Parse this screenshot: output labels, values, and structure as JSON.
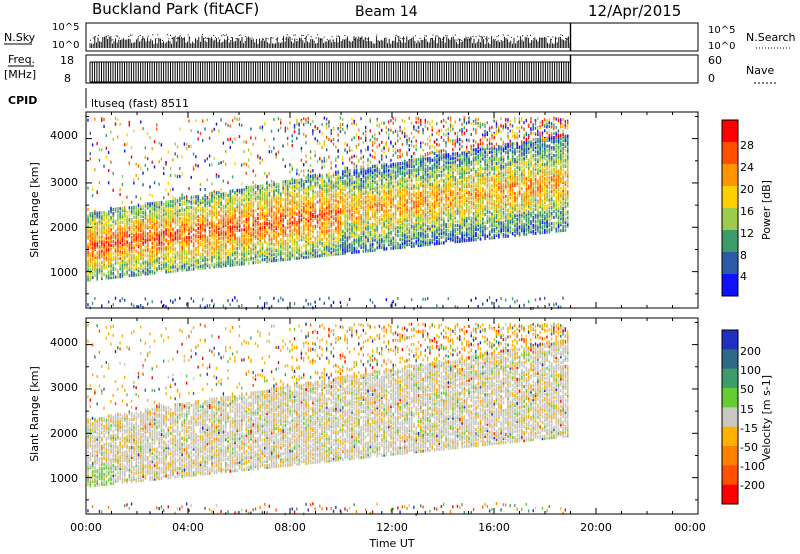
{
  "header": {
    "title": "Buckland Park (fitACF)",
    "beam": "Beam 14",
    "date": "12/Apr/2015"
  },
  "sky_panel": {
    "left_label": "N.Sky",
    "right_label": "N.Search",
    "ticks_left": [
      "10^5",
      "10^0"
    ],
    "ticks_right": [
      "10^5",
      "10^0"
    ]
  },
  "freq_panel": {
    "left_label_1": "Freq.",
    "left_label_2": "[MHz]",
    "right_label": "Nave",
    "ticks_left": [
      "18",
      "8"
    ],
    "ticks_right": [
      "60",
      "0"
    ]
  },
  "cpid": {
    "label": "CPID",
    "value": "ltuseq (fast) 8511"
  },
  "chart_data": [
    {
      "type": "heatmap",
      "panel": "power",
      "ylabel": "Slant Range [km]",
      "xlabel": "",
      "ylim": [
        180,
        4600
      ],
      "xlim": [
        "00:00",
        "24:00"
      ],
      "data_end": "19:00",
      "y_ticks": [
        "4000",
        "3000",
        "2000",
        "1000"
      ],
      "colorbar": {
        "label": "Power [dB]",
        "ticks": [
          "28",
          "24",
          "20",
          "16",
          "12",
          "8",
          "4"
        ],
        "colors": [
          "#ff0000",
          "#ff5000",
          "#ff9400",
          "#ffd000",
          "#9ecb4b",
          "#3b9e6a",
          "#2a5aa8",
          "#1010ff"
        ]
      }
    },
    {
      "type": "heatmap",
      "panel": "velocity",
      "ylabel": "Slant Range [km]",
      "xlabel": "Time UT",
      "ylim": [
        180,
        4600
      ],
      "xlim": [
        "00:00",
        "24:00"
      ],
      "data_end": "19:00",
      "y_ticks": [
        "4000",
        "3000",
        "2000",
        "1000"
      ],
      "x_ticks": [
        "00:00",
        "04:00",
        "08:00",
        "12:00",
        "16:00",
        "20:00",
        "00:00"
      ],
      "colorbar": {
        "label": "Velocity [m s-1]",
        "ticks": [
          "200",
          "100",
          "50",
          "15",
          "-15",
          "-50",
          "-100",
          "-200"
        ],
        "colors": [
          "#2030c0",
          "#2d6a8a",
          "#3b9e6a",
          "#66cc33",
          "#c8c8c0",
          "#ffb000",
          "#ff8000",
          "#ff5000",
          "#ff0000"
        ]
      }
    }
  ]
}
